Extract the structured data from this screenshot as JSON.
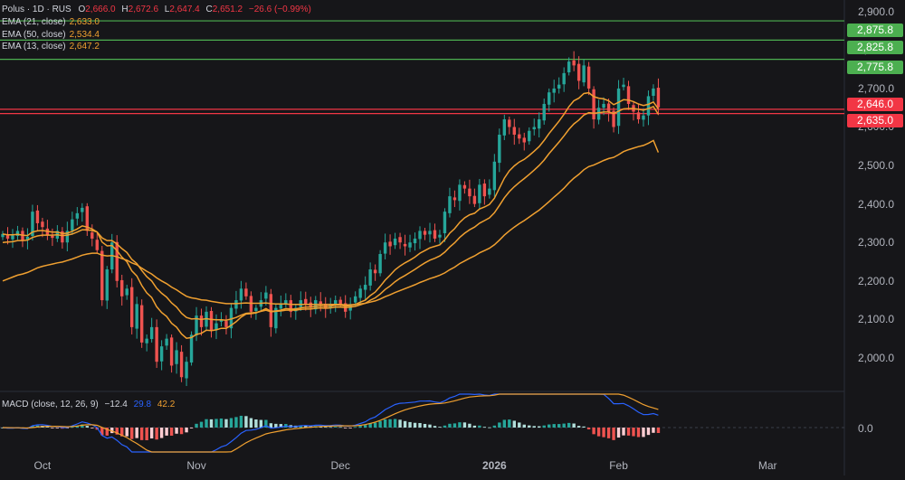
{
  "header": {
    "symbol": "Polus · 1D · RUS",
    "o_label": "O",
    "o_value": "2,666.0",
    "h_label": "H",
    "h_value": "2,672.6",
    "l_label": "L",
    "l_value": "2,647.4",
    "c_label": "C",
    "c_value": "2,651.2",
    "change": "−26.6 (−0.99%)",
    "change_color": "#f23645"
  },
  "indicators": [
    {
      "label": "EMA (21, close)",
      "value": "2,633.0",
      "color": "#f0a030"
    },
    {
      "label": "EMA (50, close)",
      "value": "2,534.4",
      "color": "#f0a030"
    },
    {
      "label": "EMA (13, close)",
      "value": "2,647.2",
      "color": "#f0a030"
    }
  ],
  "macd_legend": {
    "label": "MACD (close, 12, 26, 9)",
    "hist": "−12.4",
    "macd": "29.8",
    "signal": "42.2",
    "hist_color": "#d1d4dc",
    "macd_color": "#2962ff",
    "signal_color": "#f0a030"
  },
  "price_tags": [
    {
      "text": "2,875.8",
      "price": 2875.8,
      "color": "#4caf50"
    },
    {
      "text": "2,825.8",
      "price": 2825.8,
      "color": "#4caf50"
    },
    {
      "text": "2,775.8",
      "price": 2775.8,
      "color": "#4caf50"
    },
    {
      "text": "2,646.0",
      "price": 2646.0,
      "color": "#f23645"
    },
    {
      "text": "2,635.0",
      "price": 2635.0,
      "color": "#f23645"
    }
  ],
  "colors": {
    "up": "#26a69a",
    "down": "#ef5350",
    "ema": "#f0a030",
    "macd": "#2962ff",
    "signal": "#f0a030",
    "green_line": "#4caf50",
    "red_line": "#f23645",
    "background": "#161619"
  },
  "chart_data": {
    "type": "candlestick",
    "yaxis": {
      "ticks": [
        "2,000.0",
        "2,100.0",
        "2,200.0",
        "2,300.0",
        "2,400.0",
        "2,500.0",
        "2,600.0",
        "2,700.0",
        "2,800.0",
        "2,900.0"
      ],
      "values": [
        2000,
        2100,
        2200,
        2300,
        2400,
        2500,
        2600,
        2700,
        2800,
        2900
      ],
      "range": [
        1920,
        2930
      ]
    },
    "xaxis": {
      "labels": [
        {
          "text": "Oct",
          "idx": 8
        },
        {
          "text": "Nov",
          "idx": 39
        },
        {
          "text": "Dec",
          "idx": 68
        },
        {
          "text": "2026",
          "idx": 99
        },
        {
          "text": "Feb",
          "idx": 124
        },
        {
          "text": "Mar",
          "idx": 154
        }
      ],
      "index_range": [
        0,
        170
      ]
    },
    "horizontal_levels": [
      2875.8,
      2825.8,
      2775.8,
      2646.0,
      2635.0
    ],
    "close": [
      2322,
      2310,
      2318,
      2330,
      2305,
      2315,
      2380,
      2350,
      2340,
      2320,
      2312,
      2330,
      2300,
      2330,
      2360,
      2376,
      2390,
      2330,
      2310,
      2280,
      2150,
      2230,
      2300,
      2200,
      2160,
      2180,
      2080,
      2140,
      2040,
      2050,
      2080,
      1990,
      2030,
      2050,
      1980,
      2020,
      1950,
      1990,
      2060,
      2110,
      2080,
      2120,
      2070,
      2090,
      2100,
      2080,
      2130,
      2150,
      2180,
      2160,
      2120,
      2130,
      2150,
      2170,
      2080,
      2130,
      2140,
      2150,
      2120,
      2130,
      2150,
      2140,
      2130,
      2150,
      2140,
      2130,
      2140,
      2150,
      2140,
      2120,
      2140,
      2160,
      2180,
      2190,
      2230,
      2220,
      2270,
      2300,
      2290,
      2310,
      2300,
      2290,
      2300,
      2310,
      2330,
      2320,
      2330,
      2310,
      2320,
      2380,
      2420,
      2410,
      2450,
      2440,
      2420,
      2400,
      2450,
      2420,
      2440,
      2510,
      2580,
      2620,
      2600,
      2580,
      2570,
      2560,
      2590,
      2600,
      2620,
      2660,
      2690,
      2700,
      2710,
      2740,
      2770,
      2760,
      2720,
      2760,
      2700,
      2620,
      2650,
      2660,
      2640,
      2600,
      2700,
      2710,
      2660,
      2640,
      2620,
      2630,
      2680,
      2700,
      2651
    ],
    "ema13": [
      2322,
      2320,
      2320,
      2321,
      2319,
      2318,
      2327,
      2330,
      2331,
      2329,
      2327,
      2327,
      2323,
      2324,
      2329,
      2335,
      2343,
      2340,
      2335,
      2327,
      2301,
      2291,
      2292,
      2279,
      2262,
      2250,
      2226,
      2213,
      2188,
      2169,
      2157,
      2133,
      2118,
      2108,
      2090,
      2080,
      2062,
      2051,
      2053,
      2061,
      2064,
      2072,
      2071,
      2073,
      2077,
      2077,
      2085,
      2094,
      2106,
      2114,
      2115,
      2117,
      2122,
      2128,
      2121,
      2122,
      2124,
      2128,
      2127,
      2127,
      2130,
      2132,
      2132,
      2134,
      2135,
      2134,
      2135,
      2137,
      2137,
      2135,
      2136,
      2139,
      2145,
      2150,
      2162,
      2171,
      2186,
      2202,
      2215,
      2229,
      2239,
      2247,
      2254,
      2262,
      2272,
      2279,
      2286,
      2290,
      2294,
      2307,
      2324,
      2336,
      2352,
      2364,
      2372,
      2376,
      2387,
      2392,
      2399,
      2415,
      2441,
      2467,
      2486,
      2499,
      2509,
      2516,
      2526,
      2537,
      2549,
      2565,
      2583,
      2599,
      2615,
      2633,
      2653,
      2668,
      2675,
      2687,
      2689,
      2679,
      2675,
      2673,
      2668,
      2658,
      2664,
      2671,
      2670,
      2666,
      2660,
      2656,
      2659,
      2665,
      2647
    ],
    "ema21": [
      2300,
      2301,
      2302,
      2305,
      2305,
      2306,
      2313,
      2317,
      2319,
      2319,
      2319,
      2320,
      2318,
      2319,
      2322,
      2327,
      2333,
      2333,
      2331,
      2327,
      2312,
      2305,
      2305,
      2296,
      2284,
      2274,
      2256,
      2245,
      2227,
      2211,
      2200,
      2181,
      2168,
      2158,
      2143,
      2132,
      2116,
      2105,
      2101,
      2102,
      2100,
      2102,
      2100,
      2099,
      2099,
      2098,
      2101,
      2105,
      2111,
      2116,
      2117,
      2118,
      2121,
      2124,
      2120,
      2121,
      2122,
      2124,
      2124,
      2124,
      2126,
      2127,
      2127,
      2129,
      2130,
      2129,
      2130,
      2132,
      2132,
      2131,
      2132,
      2134,
      2138,
      2142,
      2150,
      2156,
      2166,
      2178,
      2187,
      2198,
      2207,
      2214,
      2222,
      2230,
      2239,
      2247,
      2254,
      2259,
      2265,
      2275,
      2288,
      2299,
      2313,
      2324,
      2333,
      2340,
      2350,
      2357,
      2364,
      2377,
      2396,
      2416,
      2432,
      2445,
      2456,
      2466,
      2477,
      2488,
      2500,
      2514,
      2531,
      2546,
      2561,
      2577,
      2594,
      2608,
      2618,
      2631,
      2637,
      2636,
      2637,
      2639,
      2639,
      2635,
      2641,
      2647,
      2648,
      2648,
      2646,
      2644,
      2648,
      2653,
      2633
    ],
    "ema50": [
      2200,
      2205,
      2210,
      2215,
      2218,
      2222,
      2228,
      2234,
      2238,
      2241,
      2244,
      2247,
      2249,
      2253,
      2257,
      2262,
      2267,
      2270,
      2272,
      2272,
      2267,
      2265,
      2266,
      2263,
      2258,
      2254,
      2247,
      2242,
      2233,
      2225,
      2218,
      2208,
      2200,
      2193,
      2184,
      2177,
      2168,
      2160,
      2156,
      2154,
      2151,
      2150,
      2147,
      2145,
      2143,
      2141,
      2141,
      2141,
      2142,
      2143,
      2142,
      2142,
      2142,
      2143,
      2141,
      2140,
      2140,
      2140,
      2139,
      2139,
      2139,
      2139,
      2139,
      2139,
      2139,
      2139,
      2139,
      2139,
      2139,
      2138,
      2138,
      2139,
      2140,
      2142,
      2145,
      2148,
      2153,
      2159,
      2164,
      2170,
      2175,
      2180,
      2185,
      2190,
      2196,
      2201,
      2206,
      2210,
      2215,
      2221,
      2229,
      2236,
      2245,
      2252,
      2259,
      2265,
      2273,
      2279,
      2285,
      2294,
      2306,
      2319,
      2330,
      2340,
      2349,
      2357,
      2366,
      2375,
      2384,
      2395,
      2406,
      2418,
      2429,
      2441,
      2455,
      2467,
      2477,
      2489,
      2497,
      2501,
      2507,
      2513,
      2518,
      2521,
      2528,
      2536,
      2541,
      2545,
      2549,
      2552,
      2558,
      2565,
      2534
    ],
    "macd": {
      "series_shown": [
        "histogram",
        "macd",
        "signal"
      ],
      "zero_label": "0.0"
    }
  }
}
